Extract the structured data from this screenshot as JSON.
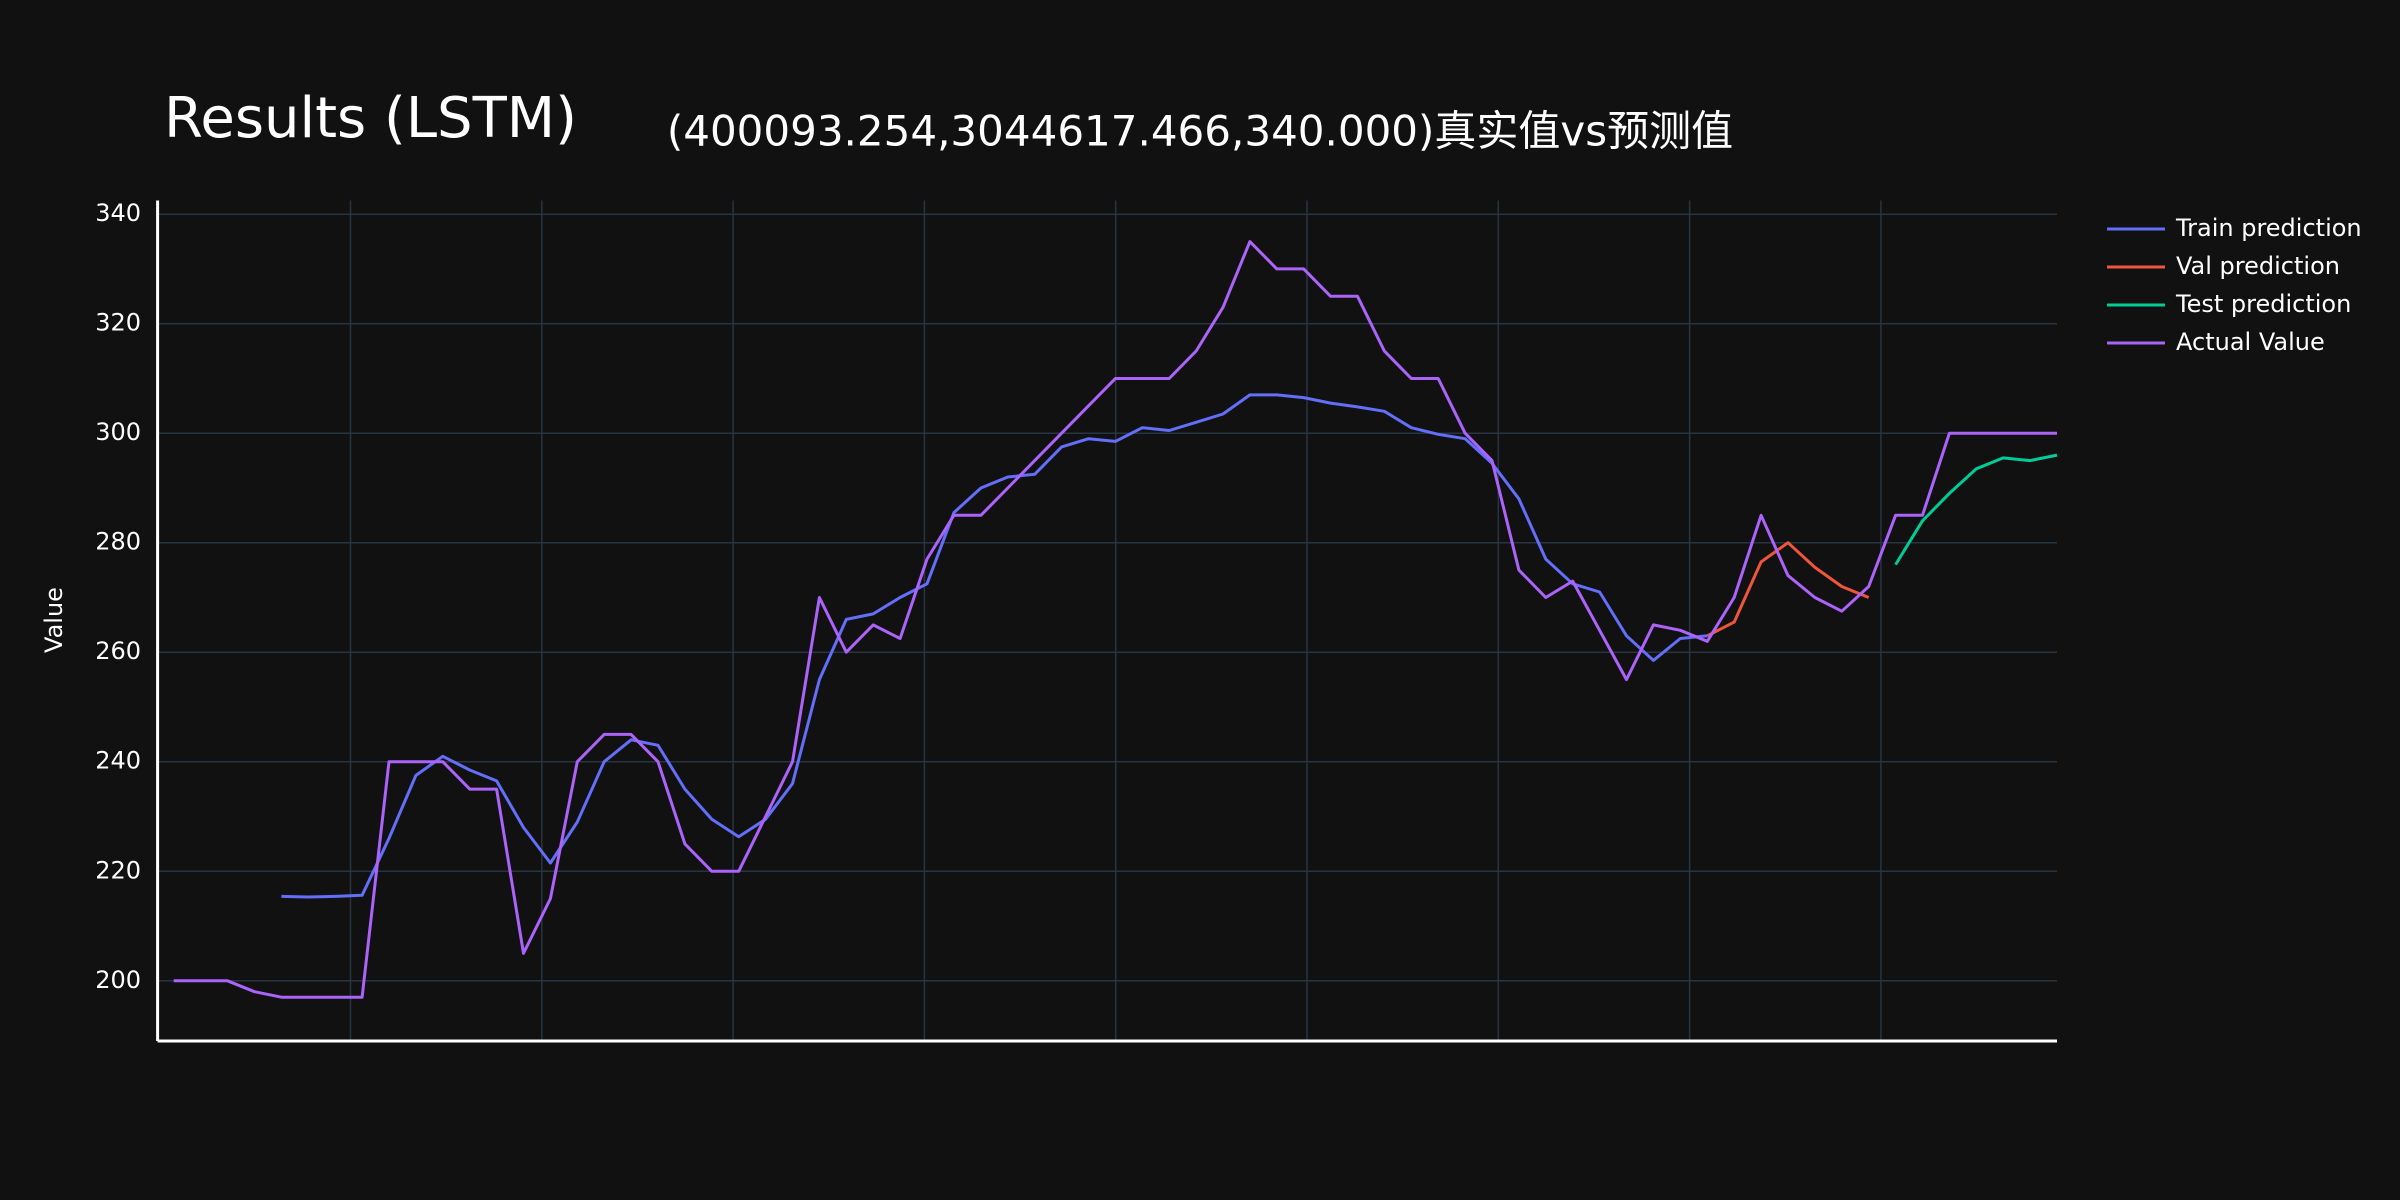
{
  "chart_data": {
    "type": "line",
    "title": "Results (LSTM)",
    "subtitle": "(400093.254,3044617.466,340.000)真实值vs预测值",
    "y_label": "Value",
    "x": [
      0,
      1,
      2,
      3,
      4,
      5,
      6,
      7,
      8,
      9,
      10,
      11,
      12,
      13,
      14,
      15,
      16,
      17,
      18,
      19,
      20,
      21,
      22,
      23,
      24,
      25,
      26,
      27,
      28,
      29,
      30,
      31,
      32,
      33,
      34,
      35,
      36,
      37,
      38,
      39,
      40,
      41,
      42,
      43,
      44,
      45,
      46,
      47,
      48,
      49,
      50,
      51,
      52,
      53,
      54,
      55,
      56,
      57,
      58,
      59,
      60,
      61,
      62,
      63,
      64,
      65,
      66,
      67,
      68,
      69,
      70
    ],
    "xlim": [
      -0.6,
      70
    ],
    "ylim": [
      189,
      342.5
    ],
    "yticks": [
      200,
      220,
      240,
      260,
      280,
      300,
      320,
      340
    ],
    "grid": true,
    "legend": "right",
    "series": [
      {
        "name": "Train prediction",
        "color": "#636efa",
        "values": [
          null,
          null,
          null,
          null,
          215.4,
          215.3,
          215.4,
          215.6,
          226,
          237.5,
          241,
          238.5,
          236.5,
          228,
          221.5,
          229,
          240,
          244,
          243,
          235,
          229.5,
          226.3,
          229.5,
          236,
          255,
          266,
          267,
          270,
          272.5,
          285.5,
          290,
          292,
          292.5,
          297.5,
          299,
          298.5,
          301,
          300.5,
          302,
          303.5,
          307,
          307,
          306.5,
          305.5,
          304.8,
          304,
          301,
          299.8,
          299,
          294.5,
          288,
          277,
          272.5,
          271,
          263,
          258.5,
          262.5,
          263,
          null,
          null,
          null,
          null,
          null,
          null,
          null,
          null,
          null,
          null,
          null,
          null,
          null
        ]
      },
      {
        "name": "Val prediction",
        "color": "#ef553b",
        "values": [
          null,
          null,
          null,
          null,
          null,
          null,
          null,
          null,
          null,
          null,
          null,
          null,
          null,
          null,
          null,
          null,
          null,
          null,
          null,
          null,
          null,
          null,
          null,
          null,
          null,
          null,
          null,
          null,
          null,
          null,
          null,
          null,
          null,
          null,
          null,
          null,
          null,
          null,
          null,
          null,
          null,
          null,
          null,
          null,
          null,
          null,
          null,
          null,
          null,
          null,
          null,
          null,
          null,
          null,
          null,
          null,
          null,
          263,
          265.5,
          276.5,
          280,
          275.5,
          272,
          270,
          null,
          null,
          null,
          null,
          null,
          null,
          null
        ]
      },
      {
        "name": "Test prediction",
        "color": "#00cc96",
        "values": [
          null,
          null,
          null,
          null,
          null,
          null,
          null,
          null,
          null,
          null,
          null,
          null,
          null,
          null,
          null,
          null,
          null,
          null,
          null,
          null,
          null,
          null,
          null,
          null,
          null,
          null,
          null,
          null,
          null,
          null,
          null,
          null,
          null,
          null,
          null,
          null,
          null,
          null,
          null,
          null,
          null,
          null,
          null,
          null,
          null,
          null,
          null,
          null,
          null,
          null,
          null,
          null,
          null,
          null,
          null,
          null,
          null,
          null,
          null,
          null,
          null,
          null,
          null,
          null,
          276,
          284,
          289,
          293.5,
          295.5,
          295,
          296
        ]
      },
      {
        "name": "Actual Value",
        "color": "#ab63fa",
        "values": [
          200,
          200,
          200,
          198,
          197,
          197,
          197,
          197,
          240,
          240,
          240,
          235,
          235,
          205,
          215,
          240,
          245,
          245,
          240,
          225,
          220,
          220,
          230,
          240,
          270,
          260,
          265,
          262.5,
          277,
          285,
          285,
          290,
          295,
          300,
          305,
          310,
          310,
          310,
          315,
          323,
          335,
          330,
          330,
          325,
          325,
          315,
          310,
          310,
          300,
          295,
          275,
          270,
          273,
          264,
          255,
          265,
          264,
          262,
          270,
          285,
          274,
          270,
          267.5,
          272,
          285,
          285,
          300,
          300,
          300,
          300,
          300
        ]
      }
    ]
  }
}
